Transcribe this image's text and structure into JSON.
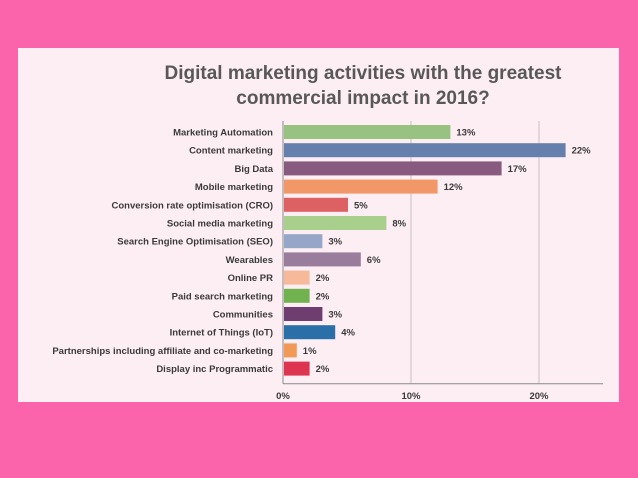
{
  "chart_data": {
    "type": "bar",
    "orientation": "horizontal",
    "title": [
      "Digital marketing activities with the greatest",
      "commercial impact in 2016?"
    ],
    "xlabel": "",
    "ylabel": "",
    "xlim": [
      0,
      25
    ],
    "xticks": [
      0,
      10,
      20
    ],
    "xtick_labels": [
      "0%",
      "10%",
      "20%"
    ],
    "grid": true,
    "categories": [
      "Marketing Automation",
      "Content marketing",
      "Big Data",
      "Mobile marketing",
      "Conversion rate optimisation (CRO)",
      "Social media marketing",
      "Search Engine Optimisation (SEO)",
      "Wearables",
      "Online PR",
      "Paid search marketing",
      "Communities",
      "Internet of Things (IoT)",
      "Partnerships including affiliate and co-marketing",
      "Display inc Programmatic"
    ],
    "values": [
      13,
      22,
      17,
      12,
      5,
      8,
      3,
      6,
      2,
      2,
      3,
      4,
      1,
      2
    ],
    "value_labels": [
      "13%",
      "22%",
      "17%",
      "12%",
      "5%",
      "8%",
      "3%",
      "6%",
      "2%",
      "2%",
      "3%",
      "4%",
      "1%",
      "2%"
    ],
    "colors": [
      "#98c27f",
      "#6580ac",
      "#885a7f",
      "#f19768",
      "#dd6062",
      "#a8cf8c",
      "#95a6c8",
      "#9a7c9d",
      "#f6b99a",
      "#6fb24f",
      "#6f3e70",
      "#2a6fa8",
      "#f29a55",
      "#dd3550"
    ]
  }
}
